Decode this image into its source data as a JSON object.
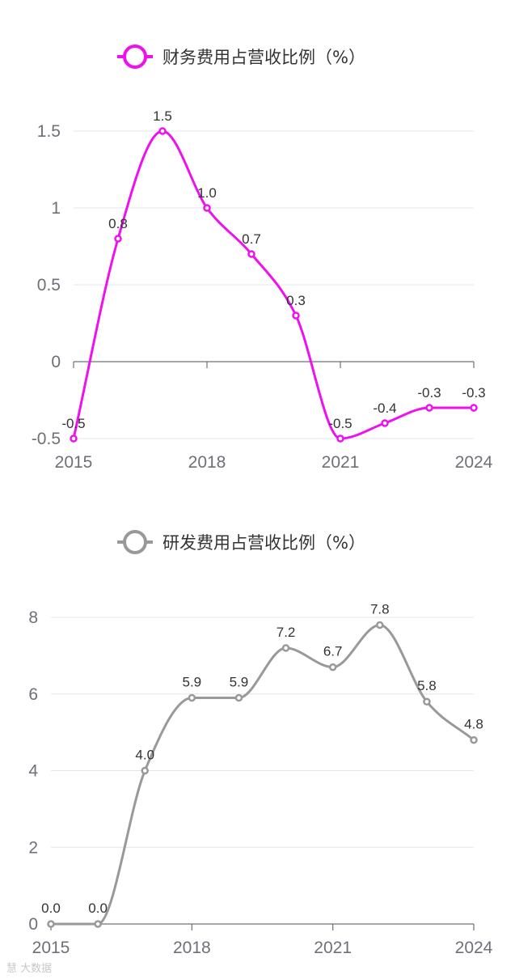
{
  "chart_data": [
    {
      "type": "line",
      "smooth": true,
      "x": [
        "2015",
        "2016",
        "2017",
        "2018",
        "2019",
        "2020",
        "2021",
        "2022",
        "2023",
        "2024"
      ],
      "x_tick_labels": [
        "2015",
        "2018",
        "2021",
        "2024"
      ],
      "series": [
        {
          "name": "财务费用占营收比例（%）",
          "values": [
            -0.5,
            0.8,
            1.5,
            1.0,
            0.7,
            0.3,
            -0.5,
            -0.4,
            -0.3,
            -0.3
          ],
          "labels": [
            "-0.5",
            "0.8",
            "1.5",
            "1.0",
            "0.7",
            "0.3",
            "-0.5",
            "-0.4",
            "-0.3",
            "-0.3"
          ],
          "color": "#ee11ee"
        }
      ],
      "y_ticks": [
        -0.5,
        0,
        0.5,
        1,
        1.5
      ],
      "y_tick_labels": [
        "-0.5",
        "0",
        "0.5",
        "1",
        "1.5"
      ],
      "ylim": [
        -0.5,
        1.5
      ],
      "grid": true,
      "legend_position": "top-center"
    },
    {
      "type": "line",
      "smooth": true,
      "x": [
        "2015",
        "2016",
        "2017",
        "2018",
        "2019",
        "2020",
        "2021",
        "2022",
        "2023",
        "2024"
      ],
      "x_tick_labels": [
        "2015",
        "2018",
        "2021",
        "2024"
      ],
      "series": [
        {
          "name": "研发费用占营收比例（%）",
          "values": [
            0.0,
            0.0,
            4.0,
            5.9,
            5.9,
            7.2,
            6.7,
            7.8,
            5.8,
            4.8
          ],
          "labels": [
            "0.0",
            "0.0",
            "4.0",
            "5.9",
            "5.9",
            "7.2",
            "6.7",
            "7.8",
            "5.8",
            "4.8"
          ],
          "color": "#999999"
        }
      ],
      "y_ticks": [
        0,
        2,
        4,
        6,
        8
      ],
      "y_tick_labels": [
        "0",
        "2",
        "4",
        "6",
        "8"
      ],
      "ylim": [
        0,
        8
      ],
      "grid": true,
      "legend_position": "top-center"
    }
  ],
  "watermark": "慧 大数据"
}
